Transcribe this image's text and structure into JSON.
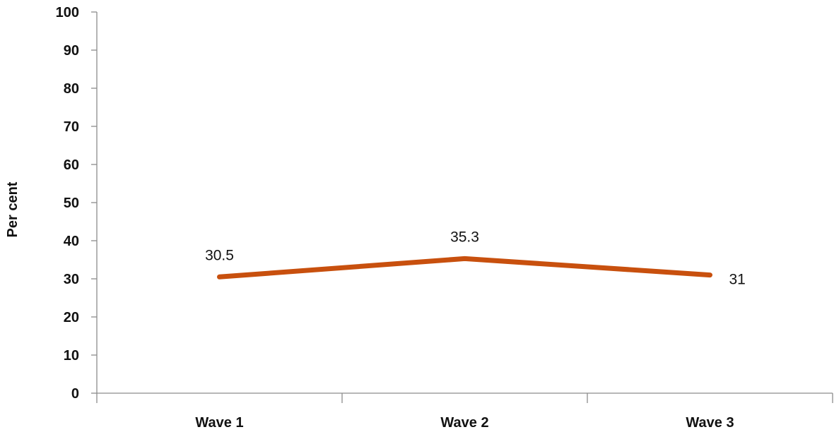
{
  "chart_data": {
    "type": "line",
    "title": "",
    "xlabel": "",
    "ylabel": "Per cent",
    "categories": [
      "Wave 1",
      "Wave 2",
      "Wave 3"
    ],
    "series": [
      {
        "values": [
          30.5,
          35.3,
          31
        ],
        "labels": [
          "30.5",
          "35.3",
          "31"
        ],
        "color": "#c8500e"
      }
    ],
    "ylim": [
      0,
      100
    ],
    "yticks": [
      "0",
      "10",
      "20",
      "30",
      "40",
      "50",
      "60",
      "70",
      "80",
      "90",
      "100"
    ],
    "grid": false,
    "legend": "none"
  }
}
